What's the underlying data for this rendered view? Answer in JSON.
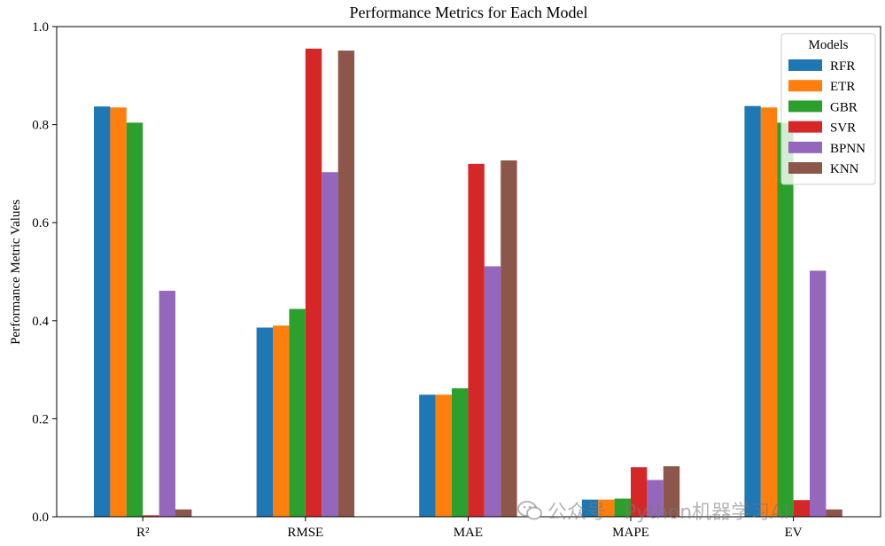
{
  "chart_data": {
    "type": "bar",
    "title": "Performance Metrics for Each Model",
    "xlabel": "",
    "ylabel": "Performance Metric Values",
    "ylim": [
      0,
      1.0
    ],
    "yticks": [
      "0.0",
      "0.2",
      "0.4",
      "0.6",
      "0.8",
      "1.0"
    ],
    "categories": [
      "R²",
      "RMSE",
      "MAE",
      "MAPE",
      "EV"
    ],
    "legend": {
      "title": "Models",
      "placement": "top-right"
    },
    "grid": false,
    "series": [
      {
        "name": "RFR",
        "color": "#1f77b4",
        "values": [
          0.837,
          0.386,
          0.249,
          0.035,
          0.838
        ]
      },
      {
        "name": "ETR",
        "color": "#ff7f0e",
        "values": [
          0.835,
          0.39,
          0.249,
          0.035,
          0.835
        ]
      },
      {
        "name": "GBR",
        "color": "#2ca02c",
        "values": [
          0.804,
          0.424,
          0.262,
          0.037,
          0.804
        ]
      },
      {
        "name": "SVR",
        "color": "#d62728",
        "values": [
          0.003,
          0.955,
          0.72,
          0.101,
          0.034
        ]
      },
      {
        "name": "BPNN",
        "color": "#9467bd",
        "values": [
          0.461,
          0.703,
          0.511,
          0.075,
          0.502
        ]
      },
      {
        "name": "KNN",
        "color": "#8c564b",
        "values": [
          0.015,
          0.951,
          0.727,
          0.103,
          0.015
        ]
      }
    ]
  },
  "watermark": {
    "text": "公众号 · Python机器学习AI",
    "icon": "wechat-icon"
  }
}
